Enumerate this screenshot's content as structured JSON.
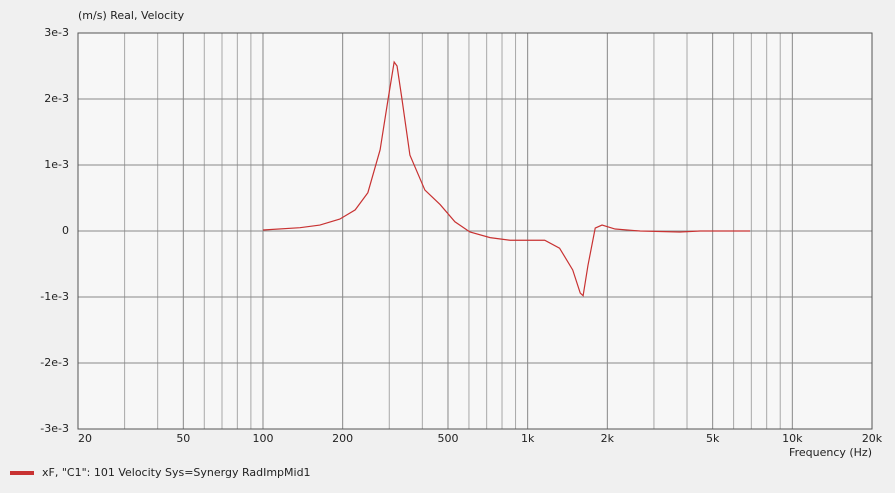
{
  "chart_data": {
    "type": "line",
    "y_label": "(m/s)  Real, Velocity",
    "x_label": "Frequency  (Hz)",
    "xlog": true,
    "grid": true,
    "xlim": [
      20,
      20000
    ],
    "ylim": [
      -0.003,
      0.003
    ],
    "xticks": [
      20,
      50,
      100,
      200,
      500,
      {
        "value": 1000,
        "label": "1k"
      },
      {
        "value": 2000,
        "label": "2k"
      },
      {
        "value": 5000,
        "label": "5k"
      },
      {
        "value": 10000,
        "label": "10k"
      },
      {
        "value": 20000,
        "label": "20k"
      }
    ],
    "xgrid_minor": [
      30,
      40,
      60,
      70,
      80,
      90,
      300,
      400,
      600,
      700,
      800,
      900,
      3000,
      4000,
      6000,
      7000,
      8000,
      9000
    ],
    "yticks": [
      {
        "value": -0.003,
        "label": "-3e-3"
      },
      {
        "value": -0.002,
        "label": "-2e-3"
      },
      {
        "value": -0.001,
        "label": "-1e-3"
      },
      0,
      {
        "value": 0.001,
        "label": "1e-3"
      },
      {
        "value": 0.002,
        "label": "2e-3"
      },
      {
        "value": 0.003,
        "label": "3e-3"
      }
    ],
    "x": [
      100,
      138,
      164,
      195,
      223,
      249,
      277,
      297,
      313,
      321,
      335,
      359,
      409,
      467,
      531,
      605,
      721,
      858,
      1000,
      1160,
      1320,
      1480,
      1580,
      1620,
      1690,
      1800,
      1910,
      2140,
      2660,
      3760,
      4480,
      5810,
      6920
    ],
    "series": [
      {
        "name": "xF, \"C1\": 101 Velocity Sys=Synergy RadImpMid1",
        "color": "#c83232",
        "values": [
          1.5e-05,
          5e-05,
          9e-05,
          0.00018,
          0.00032,
          0.00058,
          0.00123,
          0.002,
          0.00256,
          0.0025,
          0.002,
          0.00115,
          0.00062,
          0.0004,
          0.00014,
          -1.5e-05,
          -0.0001,
          -0.00014,
          -0.00014,
          -0.00014,
          -0.00026,
          -0.00059,
          -0.00094,
          -0.00098,
          -0.00052,
          4.5e-05,
          9e-05,
          3e-05,
          0,
          -1.5e-05,
          0,
          0,
          0
        ]
      }
    ]
  }
}
